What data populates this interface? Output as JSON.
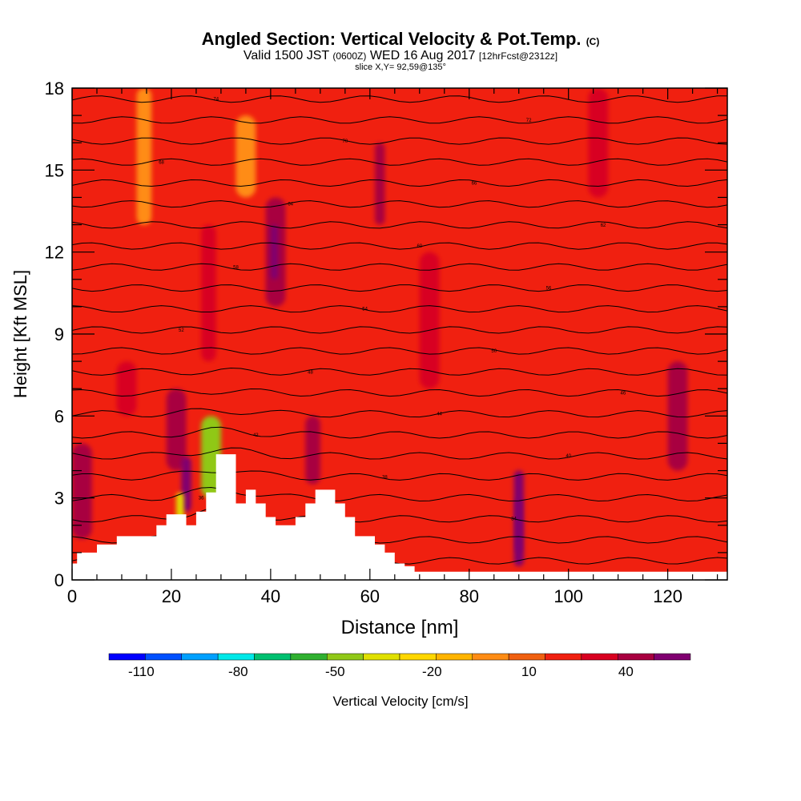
{
  "header": {
    "title_main": "Angled Section: Vertical Velocity & Pot.Temp.",
    "title_tag": "(C)",
    "valid_prefix": "Valid 1500 JST",
    "valid_utc": "(0600Z)",
    "valid_date": "WED 16 Aug 2017",
    "valid_fcst": "[12hrFcst@2312z]",
    "slice": "slice X,Y= 92,59@135°"
  },
  "chart_data": {
    "type": "heatmap",
    "xlabel": "Distance [nm]",
    "ylabel": "Height [Kft MSL]",
    "xlim": [
      0,
      132
    ],
    "ylim": [
      0,
      18
    ],
    "x_ticks": [
      0,
      20,
      40,
      60,
      80,
      100,
      120
    ],
    "y_ticks": [
      0,
      3,
      6,
      9,
      12,
      15,
      18
    ],
    "colorbar": {
      "label": "Vertical Velocity [cm/s]",
      "tick_labels": [
        "-110",
        "-80",
        "-50",
        "-20",
        "10",
        "40"
      ],
      "tick_values": [
        -110,
        -80,
        -50,
        -20,
        10,
        40
      ],
      "range": [
        -120,
        60
      ],
      "colors": [
        "#0000ff",
        "#0050ff",
        "#00a0ff",
        "#00e8e8",
        "#00c070",
        "#30b030",
        "#90c818",
        "#e0e000",
        "#ffd700",
        "#ffb400",
        "#ff8c14",
        "#f06010",
        "#f02010",
        "#d80020",
        "#a80040",
        "#800070"
      ],
      "step": 10
    },
    "background_value": 0,
    "cells": [
      {
        "x0": 0,
        "x1": 4,
        "y0": 1.5,
        "y1": 5,
        "value": 25
      },
      {
        "x0": 9,
        "x1": 13,
        "y0": 6,
        "y1": 8,
        "value": 15
      },
      {
        "x0": 19,
        "x1": 23,
        "y0": 4,
        "y1": 7,
        "value": 25
      },
      {
        "x0": 22,
        "x1": 24,
        "y0": 2.5,
        "y1": 4.5,
        "value": 50
      },
      {
        "x0": 21,
        "x1": 22.5,
        "y0": 2.2,
        "y1": 3.2,
        "value": -50
      },
      {
        "x0": 26,
        "x1": 30,
        "y0": 3,
        "y1": 6,
        "value": -60
      },
      {
        "x0": 26,
        "x1": 29,
        "y0": 8,
        "y1": 13,
        "value": 15
      },
      {
        "x0": 39,
        "x1": 43,
        "y0": 10,
        "y1": 14,
        "value": 25
      },
      {
        "x0": 40,
        "x1": 41.5,
        "y0": 11,
        "y1": 13,
        "value": 35
      },
      {
        "x0": 47,
        "x1": 50,
        "y0": 3.5,
        "y1": 6,
        "value": 25
      },
      {
        "x0": 61,
        "x1": 63,
        "y0": 13,
        "y1": 16,
        "value": 25
      },
      {
        "x0": 89,
        "x1": 91,
        "y0": 0.5,
        "y1": 4,
        "value": 30
      },
      {
        "x0": 89.4,
        "x1": 90.6,
        "y0": 1,
        "y1": 3,
        "value": 55
      },
      {
        "x0": 120,
        "x1": 124,
        "y0": 4,
        "y1": 8,
        "value": 25
      },
      {
        "x0": 13,
        "x1": 16,
        "y0": 13,
        "y1": 18,
        "value": -15
      },
      {
        "x0": 33,
        "x1": 37,
        "y0": 14,
        "y1": 17,
        "value": -15
      },
      {
        "x0": 70,
        "x1": 74,
        "y0": 7,
        "y1": 12,
        "value": 15
      },
      {
        "x0": 104,
        "x1": 108,
        "y0": 14,
        "y1": 18,
        "value": 15
      }
    ],
    "contour_labels": [
      "30",
      "32",
      "34",
      "36",
      "38",
      "40",
      "42",
      "44",
      "46",
      "48",
      "50",
      "52",
      "54",
      "56",
      "58",
      "60",
      "62",
      "64",
      "66",
      "68",
      "70",
      "72",
      "74"
    ],
    "terrain_profile": {
      "x": [
        0,
        1,
        5,
        9,
        13,
        17,
        19,
        21,
        23,
        25,
        27,
        29,
        31,
        33,
        35,
        37,
        39,
        41,
        43,
        45,
        47,
        49,
        51,
        53,
        55,
        57,
        59,
        61,
        63,
        65,
        67,
        69,
        71,
        132
      ],
      "height": [
        0.6,
        1.0,
        1.3,
        1.6,
        1.6,
        2.0,
        2.4,
        2.4,
        2.0,
        2.5,
        3.2,
        4.6,
        4.6,
        2.8,
        3.3,
        2.8,
        2.3,
        2.0,
        2.0,
        2.3,
        2.8,
        3.3,
        3.3,
        2.8,
        2.3,
        1.6,
        1.6,
        1.3,
        1.0,
        0.6,
        0.5,
        0.3,
        0.3,
        0.3
      ]
    }
  }
}
